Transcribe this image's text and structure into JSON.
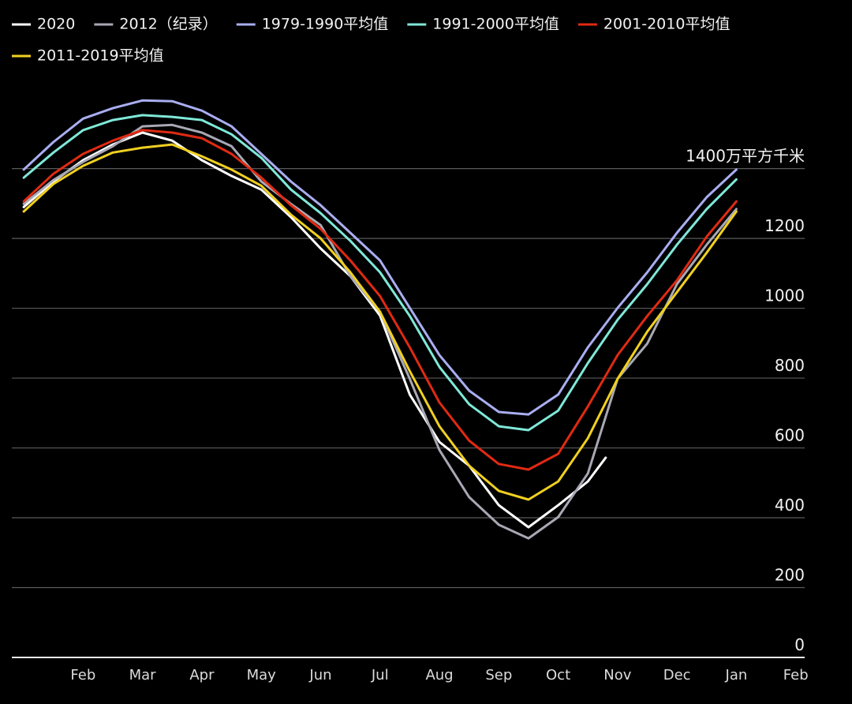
{
  "chart_data": {
    "type": "line",
    "xticks": [
      {
        "value": 1,
        "label": "Feb"
      },
      {
        "value": 2,
        "label": "Mar"
      },
      {
        "value": 3,
        "label": "Apr"
      },
      {
        "value": 4,
        "label": "May"
      },
      {
        "value": 5,
        "label": "Jun"
      },
      {
        "value": 6,
        "label": "Jul"
      },
      {
        "value": 7,
        "label": "Aug"
      },
      {
        "value": 8,
        "label": "Sep"
      },
      {
        "value": 9,
        "label": "Oct"
      },
      {
        "value": 10,
        "label": "Nov"
      },
      {
        "value": 11,
        "label": "Dec"
      },
      {
        "value": 12,
        "label": "Jan"
      },
      {
        "value": 13,
        "label": "Feb"
      }
    ],
    "xlim": [
      -0.2,
      13.15
    ],
    "ylim": [
      0,
      1650
    ],
    "yticks": [
      0,
      200,
      400,
      600,
      800,
      1000,
      1200,
      {
        "value": 1400,
        "label": "1400万平方千米"
      }
    ],
    "grid": true,
    "series": [
      {
        "name": "2020",
        "color": "#ffffff",
        "x": [
          0,
          0.5,
          1,
          1.5,
          2,
          2.5,
          3,
          3.5,
          4,
          4.5,
          5,
          5.5,
          6,
          6.5,
          7,
          7.5,
          8,
          8.5,
          9,
          9.5,
          9.8
        ],
        "values": [
          1290,
          1363,
          1424,
          1469,
          1503,
          1480,
          1424,
          1379,
          1340,
          1261,
          1171,
          1092,
          979,
          753,
          617,
          549,
          436,
          373,
          436,
          504,
          572
        ]
      },
      {
        "name": "2012（纪录）",
        "color": "#a8a8b4",
        "x": [
          0,
          0.5,
          1,
          1.5,
          2,
          2.5,
          3,
          3.5,
          4,
          4.5,
          5,
          5.5,
          6,
          6.5,
          7,
          7.5,
          8,
          8.5,
          9,
          9.5,
          10,
          10.5,
          11,
          11.5,
          12
        ],
        "values": [
          1299,
          1367,
          1419,
          1464,
          1521,
          1525,
          1503,
          1464,
          1363,
          1299,
          1238,
          1092,
          990,
          798,
          594,
          459,
          380,
          341,
          402,
          527,
          798,
          899,
          1069,
          1182,
          1284
        ]
      },
      {
        "name": "1979-1990平均值",
        "color": "#a9aef0",
        "x": [
          0,
          0.5,
          1,
          1.5,
          2,
          2.5,
          3,
          3.5,
          4,
          4.5,
          5,
          5.5,
          6,
          6.5,
          7,
          7.5,
          8,
          8.5,
          9,
          9.5,
          10,
          10.5,
          11,
          11.5,
          12
        ],
        "values": [
          1397,
          1476,
          1543,
          1573,
          1595,
          1593,
          1566,
          1521,
          1442,
          1363,
          1295,
          1216,
          1137,
          1001,
          866,
          764,
          703,
          696,
          753,
          888,
          1001,
          1103,
          1216,
          1318,
          1397
        ]
      },
      {
        "name": "1991-2000平均值",
        "color": "#7fe8d8",
        "x": [
          0,
          0.5,
          1,
          1.5,
          2,
          2.5,
          3,
          3.5,
          4,
          4.5,
          5,
          5.5,
          6,
          6.5,
          7,
          7.5,
          8,
          8.5,
          9,
          9.5,
          10,
          10.5,
          11,
          11.5,
          12
        ],
        "values": [
          1374,
          1446,
          1510,
          1539,
          1553,
          1548,
          1539,
          1498,
          1431,
          1340,
          1272,
          1193,
          1103,
          978,
          832,
          725,
          662,
          651,
          707,
          843,
          967,
          1069,
          1182,
          1284,
          1369
        ]
      },
      {
        "name": "2001-2010平均值",
        "color": "#e02a12",
        "x": [
          0,
          0.5,
          1,
          1.5,
          2,
          2.5,
          3,
          3.5,
          4,
          4.5,
          5,
          5.5,
          6,
          6.5,
          7,
          7.5,
          8,
          8.5,
          9,
          9.5,
          10,
          10.5,
          11,
          11.5,
          12
        ],
        "values": [
          1306,
          1385,
          1442,
          1480,
          1510,
          1503,
          1487,
          1442,
          1374,
          1295,
          1227,
          1137,
          1035,
          888,
          730,
          621,
          554,
          538,
          583,
          719,
          866,
          978,
          1080,
          1205,
          1306
        ]
      },
      {
        "name": "2011-2019平均值",
        "color": "#f0d020",
        "x": [
          0,
          0.5,
          1,
          1.5,
          2,
          2.5,
          3,
          3.5,
          4,
          4.5,
          5,
          5.5,
          6,
          6.5,
          7,
          7.5,
          8,
          8.5,
          9,
          9.5,
          10,
          10.5,
          11,
          11.5,
          12
        ],
        "values": [
          1277,
          1356,
          1408,
          1446,
          1460,
          1469,
          1435,
          1397,
          1351,
          1268,
          1200,
          1103,
          990,
          820,
          662,
          549,
          477,
          452,
          504,
          628,
          798,
          933,
          1046,
          1159,
          1277
        ]
      }
    ]
  }
}
